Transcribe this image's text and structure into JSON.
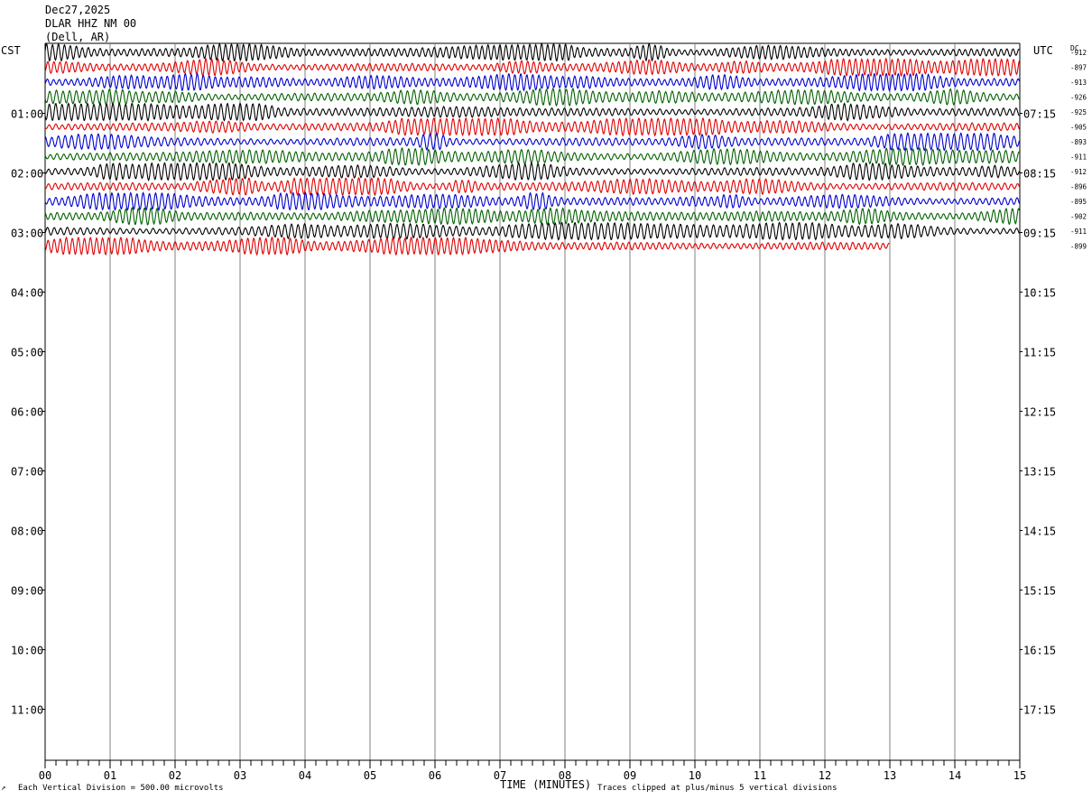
{
  "header": {
    "date": "Dec27,2025",
    "station": "DLAR HHZ NM 00",
    "location": "(Dell, AR)"
  },
  "labels": {
    "left_tz": "CST",
    "right_tz": "UTC",
    "dc": "DC",
    "xlabel": "TIME (MINUTES)"
  },
  "footer": {
    "scale_note": "Each Vertical Division =  500.00 microvolts",
    "clip_note": "Traces clipped at plus/minus 5 vertical divisions",
    "corner_mark": "↗"
  },
  "chart_data": {
    "type": "line",
    "title": "DLAR HHZ NM 00",
    "xlabel": "TIME (MINUTES)",
    "x_ticks": [
      "00",
      "01",
      "02",
      "03",
      "04",
      "05",
      "06",
      "07",
      "08",
      "09",
      "10",
      "11",
      "12",
      "13",
      "14",
      "15"
    ],
    "xlim": [
      0,
      15
    ],
    "left_hour_labels": [
      "01:00",
      "02:00",
      "03:00",
      "04:00",
      "05:00",
      "06:00",
      "07:00",
      "08:00",
      "09:00",
      "10:00",
      "11:00"
    ],
    "right_hour_labels": [
      "07:15",
      "08:15",
      "09:15",
      "10:15",
      "11:15",
      "12:15",
      "13:15",
      "14:15",
      "15:15",
      "16:15",
      "17:15"
    ],
    "trace_colors": [
      "#000000",
      "#e00000",
      "#0000cc",
      "#006000"
    ],
    "traces": [
      {
        "row": 0,
        "dc": "-912",
        "end_minute": 15
      },
      {
        "row": 1,
        "dc": "-897",
        "end_minute": 15
      },
      {
        "row": 2,
        "dc": "-913",
        "end_minute": 15
      },
      {
        "row": 3,
        "dc": "-926",
        "end_minute": 15
      },
      {
        "row": 4,
        "dc": "-925",
        "end_minute": 15
      },
      {
        "row": 5,
        "dc": "-905",
        "end_minute": 15
      },
      {
        "row": 6,
        "dc": "-893",
        "end_minute": 15
      },
      {
        "row": 7,
        "dc": "-911",
        "end_minute": 15
      },
      {
        "row": 8,
        "dc": "-912",
        "end_minute": 15
      },
      {
        "row": 9,
        "dc": "-896",
        "end_minute": 15
      },
      {
        "row": 10,
        "dc": "-895",
        "end_minute": 15
      },
      {
        "row": 11,
        "dc": "-902",
        "end_minute": 15
      },
      {
        "row": 12,
        "dc": "-911",
        "end_minute": 15
      },
      {
        "row": 13,
        "dc": "-899",
        "end_minute": 13
      }
    ]
  }
}
